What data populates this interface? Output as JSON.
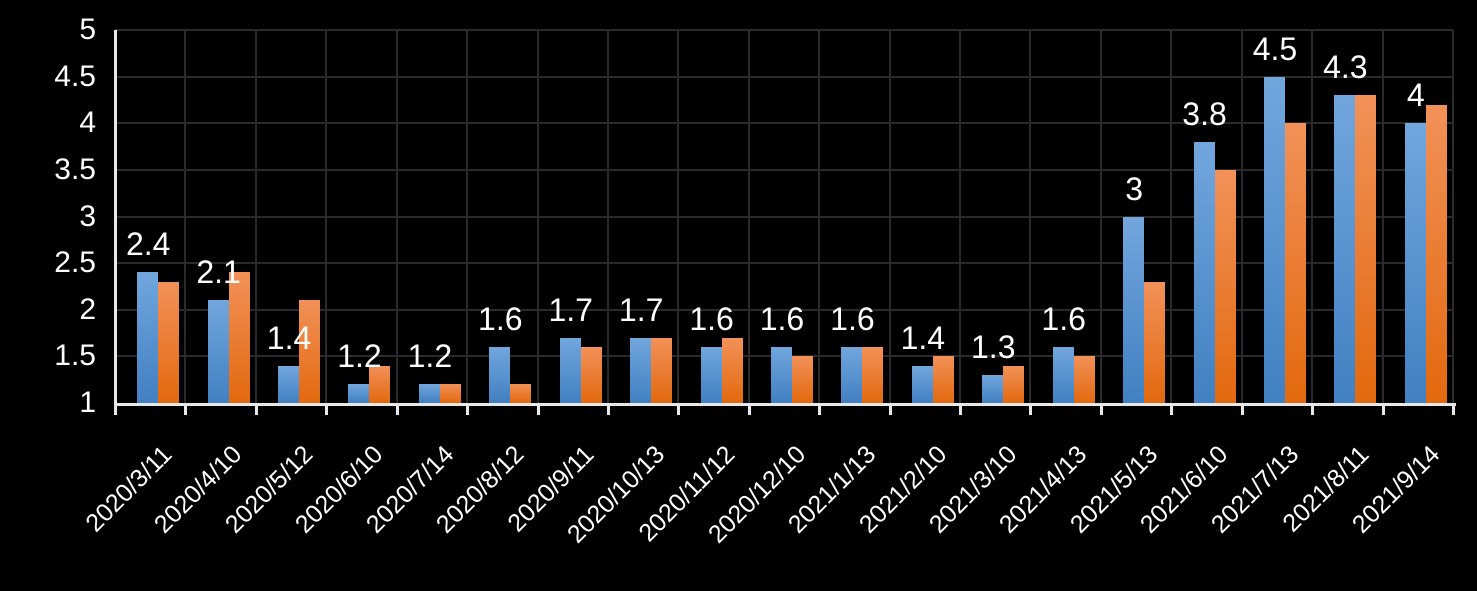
{
  "chart_data": {
    "type": "bar",
    "title": "",
    "legend": "none",
    "grid": true,
    "categories": [
      "2020/3/11",
      "2020/4/10",
      "2020/5/12",
      "2020/6/10",
      "2020/7/14",
      "2020/8/12",
      "2020/9/11",
      "2020/10/13",
      "2020/11/12",
      "2020/12/10",
      "2021/1/13",
      "2021/2/10",
      "2021/3/10",
      "2021/4/13",
      "2021/5/13",
      "2021/6/10",
      "2021/7/13",
      "2021/8/11",
      "2021/9/14"
    ],
    "series": [
      {
        "name": "blue",
        "color_top": "#72a6dd",
        "color_bottom": "#4180c2",
        "values": [
          2.4,
          2.1,
          1.4,
          1.2,
          1.2,
          1.6,
          1.7,
          1.7,
          1.6,
          1.6,
          1.6,
          1.4,
          1.3,
          1.6,
          3.0,
          3.8,
          4.5,
          4.3,
          4.0
        ]
      },
      {
        "name": "orange",
        "color_top": "#f29159",
        "color_bottom": "#e2690e",
        "values": [
          2.3,
          2.4,
          2.1,
          1.4,
          1.2,
          1.2,
          1.6,
          1.7,
          1.7,
          1.5,
          1.6,
          1.5,
          1.4,
          1.5,
          2.3,
          3.5,
          4.0,
          4.3,
          4.2
        ]
      }
    ],
    "data_labels": {
      "series": "blue",
      "values": [
        "2.4",
        "2.1",
        "1.4",
        "1.2",
        "1.2",
        "1.6",
        "1.7",
        "1.7",
        "1.6",
        "1.6",
        "1.6",
        "1.4",
        "1.3",
        "1.6",
        "3",
        "3.8",
        "4.5",
        "4.3",
        "4"
      ]
    },
    "y_axis": {
      "min": 1,
      "max": 5,
      "step": 0.5,
      "tick_labels": [
        "5",
        "4.5",
        "4",
        "3.5",
        "3",
        "2.5",
        "2",
        "1.5",
        "1"
      ]
    },
    "x_axis": {
      "label_rotation_deg": 45
    },
    "colors": {
      "background": "#000000",
      "axis": "#e8e8e8",
      "gridline": "#2a2a2a",
      "text": "#ffffff"
    }
  }
}
